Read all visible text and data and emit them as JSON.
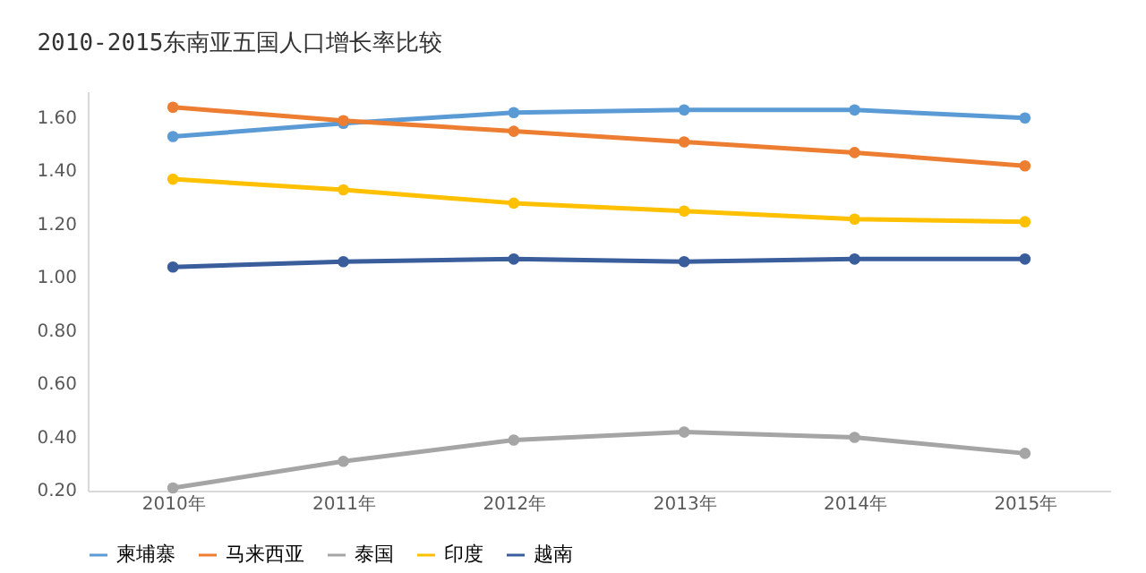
{
  "chart_data": {
    "type": "line",
    "title": "2010-2015东南亚五国人口增长率比较",
    "categories": [
      "2010年",
      "2011年",
      "2012年",
      "2013年",
      "2014年",
      "2015年"
    ],
    "series": [
      {
        "name": "柬埔寨",
        "color": "#5b9bd5",
        "values": [
          1.53,
          1.58,
          1.62,
          1.63,
          1.63,
          1.6
        ]
      },
      {
        "name": "马来西亚",
        "color": "#ed7d31",
        "values": [
          1.64,
          1.59,
          1.55,
          1.51,
          1.47,
          1.42
        ]
      },
      {
        "name": "泰国",
        "color": "#a5a5a5",
        "values": [
          0.21,
          0.31,
          0.39,
          0.42,
          0.4,
          0.34
        ]
      },
      {
        "name": "印度",
        "color": "#ffc000",
        "values": [
          1.37,
          1.33,
          1.28,
          1.25,
          1.22,
          1.21
        ]
      },
      {
        "name": "越南",
        "color": "#3a5d9c",
        "values": [
          1.04,
          1.06,
          1.07,
          1.06,
          1.07,
          1.07
        ]
      }
    ],
    "ylim": [
      0.2,
      1.7
    ],
    "yticks": [
      {
        "value": 0.2,
        "label": "0.20"
      },
      {
        "value": 0.4,
        "label": "0.40"
      },
      {
        "value": 0.6,
        "label": "0.60"
      },
      {
        "value": 0.8,
        "label": "0.80"
      },
      {
        "value": 1.0,
        "label": "1.00"
      },
      {
        "value": 1.2,
        "label": "1.20"
      },
      {
        "value": 1.4,
        "label": "1.40"
      },
      {
        "value": 1.6,
        "label": "1.60"
      }
    ],
    "grid": false,
    "legend": "bottom",
    "marker": "circle",
    "line_style": "solid"
  }
}
